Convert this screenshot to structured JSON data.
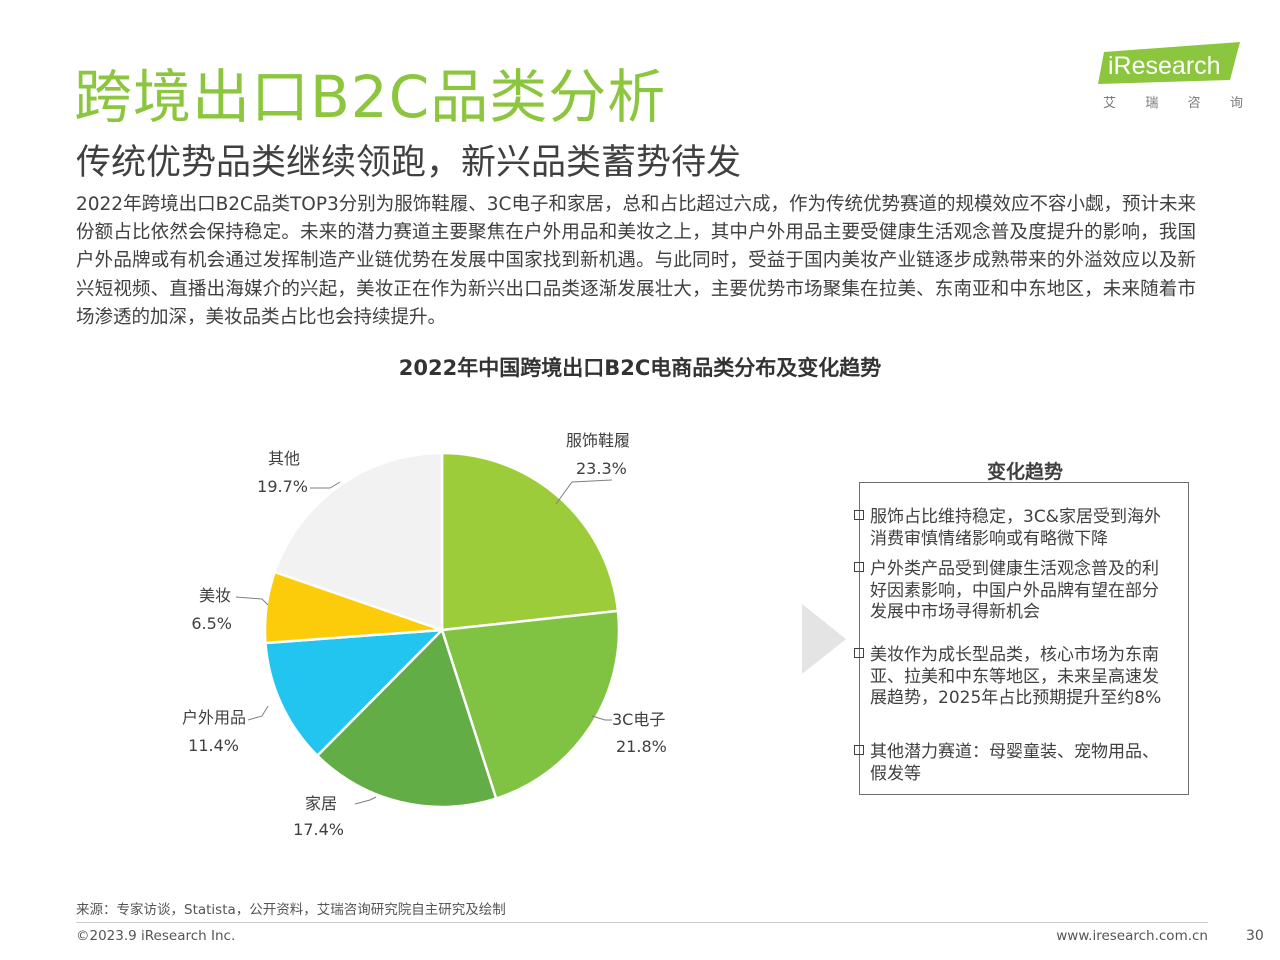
{
  "header": {
    "title": "跨境出口B2C品类分析",
    "subtitle": "传统优势品类继续领跑，新兴品类蓄势待发",
    "body": "2022年跨境出口B2C品类TOP3分别为服饰鞋履、3C电子和家居，总和占比超过六成，作为传统优势赛道的规模效应不容小觑，预计未来份额占比依然会保持稳定。未来的潜力赛道主要聚焦在户外用品和美妆之上，其中户外用品主要受健康生活观念普及度提升的影响，我国户外品牌或有机会通过发挥制造产业链优势在发展中国家找到新机遇。与此同时，受益于国内美妆产业链逐步成熟带来的外溢效应以及新兴短视频、直播出海媒介的兴起，美妆正在作为新兴出口品类逐渐发展壮大，主要优势市场聚集在拉美、东南亚和中东地区，未来随着市场渗透的加深，美妆品类占比也会持续提升。"
  },
  "logo": {
    "text": "iResearch",
    "cn": [
      "艾",
      "瑞",
      "咨",
      "询"
    ],
    "color": "#8cc63f"
  },
  "chart_data": {
    "type": "pie",
    "title": "2022年中国跨境出口B2C电商品类分布及变化趋势",
    "slices": [
      {
        "label": "服饰鞋履",
        "value": 23.3,
        "value_label": "23.3%",
        "color": "#9ccc3a"
      },
      {
        "label": "3C电子",
        "value": 21.8,
        "value_label": "21.8%",
        "color": "#80c342"
      },
      {
        "label": "家居",
        "value": 17.4,
        "value_label": "17.4%",
        "color": "#62ad45"
      },
      {
        "label": "户外用品",
        "value": 11.4,
        "value_label": "11.4%",
        "color": "#22c4f0"
      },
      {
        "label": "美妆",
        "value": 6.5,
        "value_label": "6.5%",
        "color": "#fccc0a"
      },
      {
        "label": "其他",
        "value": 19.7,
        "value_label": "19.7%",
        "color": "#f2f2f2"
      }
    ]
  },
  "trend": {
    "title": "变化趋势",
    "items": [
      "服饰占比维持稳定，3C&家居受到海外消费审慎情绪影响或有略微下降",
      "户外类产品受到健康生活观念普及的利好因素影响，中国户外品牌有望在部分发展中市场寻得新机会",
      "美妆作为成长型品类，核心市场为东南亚、拉美和中东等地区，未来呈高速发展趋势，2025年占比预期提升至约8%",
      "其他潜力赛道：母婴童装、宠物用品、假发等"
    ]
  },
  "footer": {
    "source": "来源：专家访谈，Statista，公开资料，艾瑞咨询研究院自主研究及绘制",
    "copyright": "©2023.9 iResearch Inc.",
    "url": "www.iresearch.com.cn",
    "page": "30"
  }
}
